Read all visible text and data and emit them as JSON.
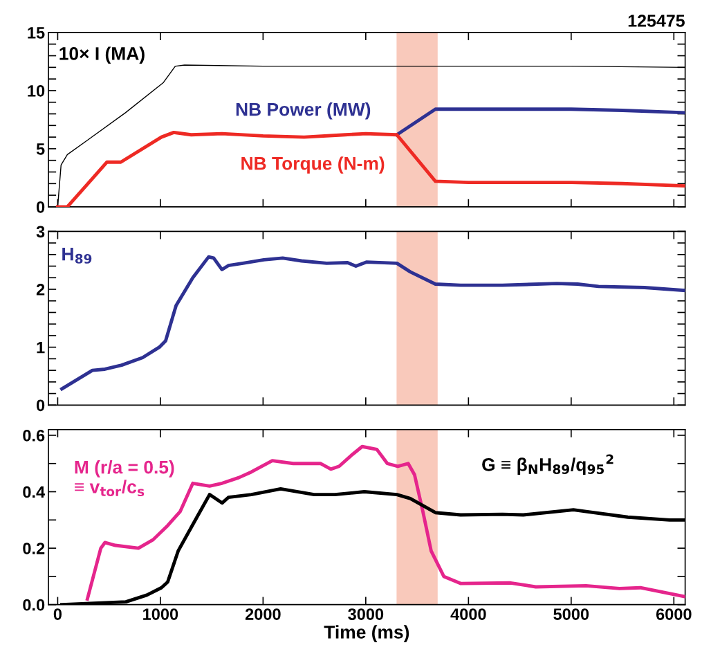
{
  "chart_data": [
    {
      "type": "line",
      "title": "125475",
      "xlim": [
        -90,
        6110
      ],
      "xticks": [
        0,
        1000,
        2000,
        3000,
        4000,
        5000,
        6000
      ],
      "ylim": [
        0,
        15
      ],
      "yticks": [
        0,
        {
          "value": 1,
          "label": null
        },
        {
          "value": 2,
          "label": null
        },
        {
          "value": 3,
          "label": null
        },
        {
          "value": 4,
          "label": null
        },
        5,
        {
          "value": 6,
          "label": null
        },
        {
          "value": 7,
          "label": null
        },
        {
          "value": 8,
          "label": null
        },
        {
          "value": 9,
          "label": null
        },
        10,
        {
          "value": 11,
          "label": null
        },
        {
          "value": 12,
          "label": null
        },
        {
          "value": 13,
          "label": null
        },
        {
          "value": 14,
          "label": null
        },
        15
      ],
      "tick_labels": "y",
      "grid": false,
      "bands": [
        {
          "axis": "x",
          "from": 3300,
          "to": 3700,
          "color": "#f9c9bb"
        }
      ],
      "series": [
        {
          "name": "10× I (MA)",
          "color": "#000000",
          "x": [
            0,
            33,
            94,
            300,
            660,
            1030,
            1145,
            1235,
            2000,
            3000,
            4000,
            5000,
            6110
          ],
          "values": [
            0,
            3.6,
            4.5,
            5.8,
            8.1,
            10.7,
            12.1,
            12.2,
            12.1,
            12.1,
            12.1,
            12.1,
            12.0
          ]
        },
        {
          "name": "NB Power (MW)",
          "color": "#2e3192",
          "x": [
            3303,
            3678,
            4000,
            4500,
            5000,
            5500,
            6110
          ],
          "values": [
            6.2,
            8.4,
            8.4,
            8.4,
            8.4,
            8.3,
            8.1
          ]
        },
        {
          "name": "NB Torque (N-m)",
          "color": "#ee2a24",
          "x": [
            0,
            94,
            480,
            615,
            1010,
            1130,
            1300,
            1600,
            2000,
            2400,
            2800,
            3000,
            3303,
            3678,
            4000,
            4500,
            5000,
            5500,
            6110
          ],
          "values": [
            0,
            0,
            3.85,
            3.85,
            6.0,
            6.4,
            6.2,
            6.3,
            6.1,
            6.0,
            6.2,
            6.3,
            6.2,
            2.2,
            2.1,
            2.1,
            2.1,
            2.0,
            1.8
          ]
        }
      ]
    },
    {
      "type": "line",
      "xlim": [
        -90,
        6110
      ],
      "xticks": [
        0,
        1000,
        2000,
        3000,
        4000,
        5000,
        6000
      ],
      "ylim": [
        0,
        3
      ],
      "yticks": [
        0,
        {
          "value": 0.2,
          "label": null
        },
        {
          "value": 0.4,
          "label": null
        },
        {
          "value": 0.6,
          "label": null
        },
        {
          "value": 0.8,
          "label": null
        },
        1,
        {
          "value": 1.2,
          "label": null
        },
        {
          "value": 1.4,
          "label": null
        },
        {
          "value": 1.6,
          "label": null
        },
        {
          "value": 1.8,
          "label": null
        },
        2,
        {
          "value": 2.2,
          "label": null
        },
        {
          "value": 2.4,
          "label": null
        },
        {
          "value": 2.6,
          "label": null
        },
        {
          "value": 2.8,
          "label": null
        },
        3
      ],
      "tick_labels": "y",
      "grid": false,
      "bands": [
        {
          "axis": "x",
          "from": 3300,
          "to": 3700,
          "color": "#f9c9bb"
        }
      ],
      "series": [
        {
          "name": "H$_{89}$",
          "color": "#2e3192",
          "x": [
            41,
            338,
            460,
            623,
            827,
            990,
            1051,
            1153,
            1316,
            1470,
            1519,
            1600,
            1662,
            1804,
            2008,
            2191,
            2375,
            2619,
            2823,
            2904,
            3006,
            3303,
            3434,
            3678,
            3923,
            4330,
            4860,
            5063,
            5267,
            5715,
            6102
          ],
          "values": [
            0.28,
            0.6,
            0.62,
            0.69,
            0.82,
            1.0,
            1.11,
            1.72,
            2.2,
            2.56,
            2.54,
            2.34,
            2.41,
            2.45,
            2.51,
            2.54,
            2.49,
            2.45,
            2.46,
            2.4,
            2.47,
            2.45,
            2.3,
            2.09,
            2.07,
            2.07,
            2.1,
            2.09,
            2.05,
            2.03,
            1.98
          ]
        }
      ]
    },
    {
      "type": "line",
      "xlabel": "Time (ms)",
      "xlim": [
        -90,
        6110
      ],
      "xticks": [
        0,
        1000,
        2000,
        3000,
        4000,
        5000,
        6000
      ],
      "ylim": [
        0,
        0.62
      ],
      "yticks": [
        {
          "value": 0,
          "label": "0.0"
        },
        {
          "value": 0.1,
          "label": null
        },
        0.2,
        {
          "value": 0.3,
          "label": null
        },
        0.4,
        {
          "value": 0.5,
          "label": null
        },
        0.6
      ],
      "grid": false,
      "bands": [
        {
          "axis": "x",
          "from": 3300,
          "to": 3700,
          "color": "#f9c9bb"
        }
      ],
      "series": [
        {
          "name": "M (r/a = 0.5)\n≡ v$_{tor}$/c$_{s}$",
          "color": "#e5258c",
          "x": [
            289,
            420,
            460,
            562,
            786,
            929,
            1071,
            1193,
            1316,
            1479,
            1601,
            1764,
            1886,
            2090,
            2293,
            2558,
            2660,
            2741,
            2863,
            2965,
            3108,
            3210,
            3312,
            3413,
            3475,
            3556,
            3637,
            3760,
            3923,
            4411,
            4656,
            5145,
            5470,
            5674,
            6102
          ],
          "values": [
            0.02,
            0.2,
            0.22,
            0.21,
            0.2,
            0.23,
            0.28,
            0.33,
            0.43,
            0.42,
            0.43,
            0.45,
            0.47,
            0.51,
            0.5,
            0.5,
            0.48,
            0.49,
            0.53,
            0.56,
            0.55,
            0.5,
            0.49,
            0.5,
            0.46,
            0.33,
            0.19,
            0.1,
            0.075,
            0.077,
            0.063,
            0.067,
            0.057,
            0.06,
            0.029
          ]
        },
        {
          "name": "G ≡ β$_{N}$H$_{89}$/q$_{95}$$^{2}$",
          "color": "#000000",
          "x": [
            41,
            664,
            868,
            1010,
            1071,
            1173,
            1356,
            1479,
            1601,
            1662,
            1886,
            2171,
            2497,
            2700,
            2986,
            3303,
            3434,
            3678,
            3923,
            4330,
            4534,
            5022,
            5145,
            5552,
            5959,
            6102
          ],
          "values": [
            0.0,
            0.01,
            0.034,
            0.06,
            0.08,
            0.19,
            0.31,
            0.39,
            0.36,
            0.38,
            0.39,
            0.41,
            0.39,
            0.39,
            0.4,
            0.39,
            0.376,
            0.326,
            0.318,
            0.32,
            0.318,
            0.336,
            0.33,
            0.31,
            0.3,
            0.3
          ]
        }
      ]
    }
  ]
}
